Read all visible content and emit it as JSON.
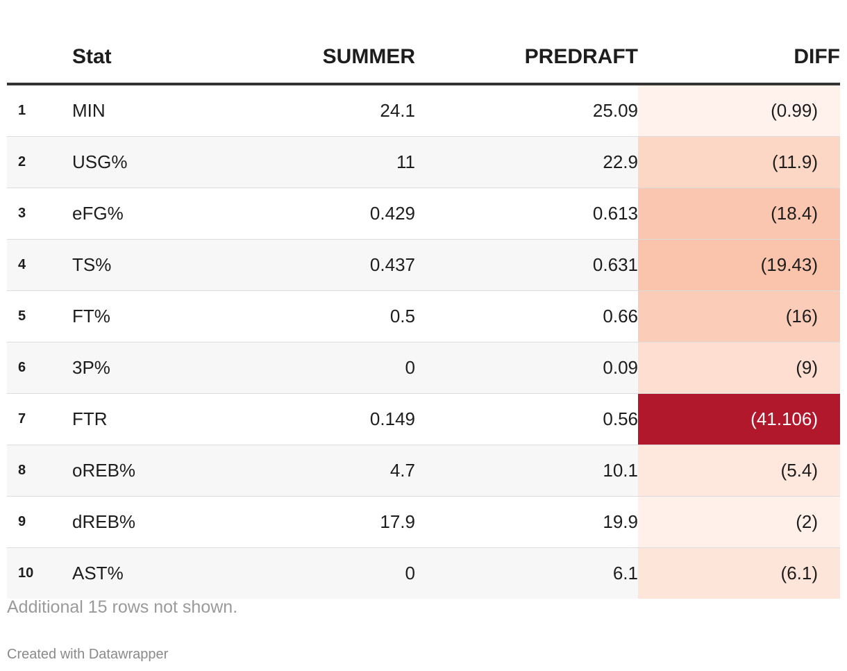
{
  "chart_data": {
    "type": "table",
    "columns": [
      "Stat",
      "SUMMER",
      "PREDRAFT",
      "DIFF"
    ],
    "rows": [
      {
        "rank": "1",
        "stat": "MIN",
        "summer": "24.1",
        "predraft": "25.09",
        "diff": "(0.99)",
        "diff_value": -0.99
      },
      {
        "rank": "2",
        "stat": "USG%",
        "summer": "11",
        "predraft": "22.9",
        "diff": "(11.9)",
        "diff_value": -11.9
      },
      {
        "rank": "3",
        "stat": "eFG%",
        "summer": "0.429",
        "predraft": "0.613",
        "diff": "(18.4)",
        "diff_value": -18.4
      },
      {
        "rank": "4",
        "stat": "TS%",
        "summer": "0.437",
        "predraft": "0.631",
        "diff": "(19.43)",
        "diff_value": -19.43
      },
      {
        "rank": "5",
        "stat": "FT%",
        "summer": "0.5",
        "predraft": "0.66",
        "diff": "(16)",
        "diff_value": -16
      },
      {
        "rank": "6",
        "stat": "3P%",
        "summer": "0",
        "predraft": "0.09",
        "diff": "(9)",
        "diff_value": -9
      },
      {
        "rank": "7",
        "stat": "FTR",
        "summer": "0.149",
        "predraft": "0.56",
        "diff": "(41.106)",
        "diff_value": -41.106
      },
      {
        "rank": "8",
        "stat": "oREB%",
        "summer": "4.7",
        "predraft": "10.1",
        "diff": "(5.4)",
        "diff_value": -5.4
      },
      {
        "rank": "9",
        "stat": "dREB%",
        "summer": "17.9",
        "predraft": "19.9",
        "diff": "(2)",
        "diff_value": -2
      },
      {
        "rank": "10",
        "stat": "AST%",
        "summer": "0",
        "predraft": "6.1",
        "diff": "(6.1)",
        "diff_value": -6.1
      }
    ],
    "diff_color_scale": {
      "light": "#fff5f0",
      "mid": "#f9b699",
      "dark": "#b2182b"
    },
    "note": "Additional 15 rows not shown.",
    "credit": "Created with Datawrapper"
  }
}
